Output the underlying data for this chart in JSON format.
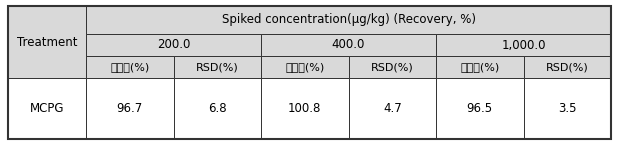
{
  "title_row": "Spiked concentration(μg/kg) (Recovery, %)",
  "conc_headers": [
    "200.0",
    "400.0",
    "1,000.0"
  ],
  "sub_headers": [
    "회수율(%)",
    "RSD(%)",
    "회수율(%)",
    "RSD(%)",
    "회수율(%)",
    "RSD(%)"
  ],
  "row_label": "MCPG",
  "treatment_label": "Treatment",
  "values": [
    "96.7",
    "6.8",
    "100.8",
    "4.7",
    "96.5",
    "3.5"
  ],
  "header_bg": "#d9d9d9",
  "body_bg": "#ffffff",
  "border_color": "#333333",
  "font_size": 8.5,
  "small_font_size": 8
}
